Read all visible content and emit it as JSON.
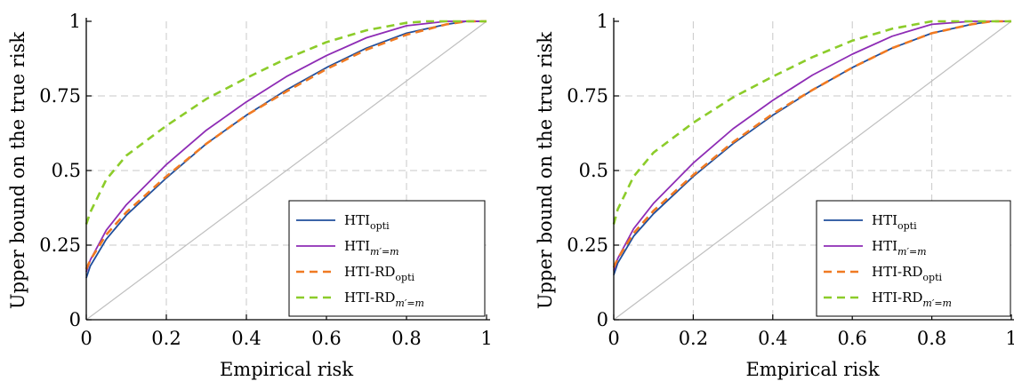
{
  "chart_data": [
    {
      "type": "line",
      "xlabel": "Empirical risk",
      "ylabel": "Upper bound on the true risk",
      "xlim": [
        0,
        1
      ],
      "ylim": [
        0,
        1
      ],
      "grid": true,
      "legend_position": "bottom-right",
      "x_ticks": [
        "0",
        "0.2",
        "0.4",
        "0.6",
        "0.8",
        "1"
      ],
      "y_ticks": [
        "0",
        "0.25",
        "0.5",
        "0.75",
        "1"
      ],
      "reference_line": {
        "x": [
          0,
          1
        ],
        "y": [
          0,
          1
        ],
        "color": "#bfbfbf"
      },
      "series": [
        {
          "name": "HTI",
          "sub": "opti",
          "color": "#1f4e9c",
          "style": "solid",
          "x": [
            0,
            0.01,
            0.05,
            0.1,
            0.2,
            0.3,
            0.4,
            0.5,
            0.6,
            0.7,
            0.8,
            0.9,
            0.95,
            1
          ],
          "y": [
            0.14,
            0.18,
            0.27,
            0.35,
            0.475,
            0.59,
            0.685,
            0.77,
            0.845,
            0.91,
            0.96,
            0.99,
            1.0,
            1.0
          ]
        },
        {
          "name": "HTI",
          "sub": "m′=m",
          "color": "#8e2cb5",
          "style": "solid",
          "x": [
            0,
            0.01,
            0.05,
            0.1,
            0.2,
            0.3,
            0.4,
            0.5,
            0.6,
            0.7,
            0.8,
            0.9,
            0.95,
            1
          ],
          "y": [
            0.16,
            0.2,
            0.3,
            0.385,
            0.52,
            0.635,
            0.73,
            0.815,
            0.885,
            0.945,
            0.985,
            1.0,
            1.0,
            1.0
          ]
        },
        {
          "name": "HTI-RD",
          "sub": "opti",
          "color": "#f07a22",
          "style": "dashed",
          "x": [
            0,
            0.01,
            0.05,
            0.1,
            0.2,
            0.3,
            0.4,
            0.5,
            0.6,
            0.7,
            0.8,
            0.9,
            0.95,
            1
          ],
          "y": [
            0.17,
            0.2,
            0.285,
            0.36,
            0.48,
            0.59,
            0.685,
            0.765,
            0.84,
            0.905,
            0.955,
            0.99,
            1.0,
            1.0
          ]
        },
        {
          "name": "HTI-RD",
          "sub": "m′=m",
          "color": "#8ccc2a",
          "style": "dashed",
          "x": [
            0,
            0.01,
            0.05,
            0.1,
            0.2,
            0.3,
            0.4,
            0.5,
            0.6,
            0.7,
            0.8,
            0.85,
            0.9,
            0.95,
            1
          ],
          "y": [
            0.32,
            0.36,
            0.47,
            0.55,
            0.65,
            0.74,
            0.81,
            0.875,
            0.93,
            0.97,
            0.995,
            1.0,
            1.0,
            1.0,
            1.0
          ]
        }
      ]
    },
    {
      "type": "line",
      "xlabel": "Empirical risk",
      "ylabel": "Upper bound on the true risk",
      "xlim": [
        0,
        1
      ],
      "ylim": [
        0,
        1
      ],
      "grid": true,
      "legend_position": "bottom-right",
      "x_ticks": [
        "0",
        "0.2",
        "0.4",
        "0.6",
        "0.8",
        "1"
      ],
      "y_ticks": [
        "0",
        "0.25",
        "0.5",
        "0.75",
        "1"
      ],
      "reference_line": {
        "x": [
          0,
          1
        ],
        "y": [
          0,
          1
        ],
        "color": "#bfbfbf"
      },
      "series": [
        {
          "name": "HTI",
          "sub": "opti",
          "color": "#1f4e9c",
          "style": "solid",
          "x": [
            0,
            0.01,
            0.05,
            0.1,
            0.2,
            0.3,
            0.4,
            0.5,
            0.6,
            0.7,
            0.8,
            0.9,
            0.95,
            1
          ],
          "y": [
            0.15,
            0.19,
            0.28,
            0.355,
            0.48,
            0.59,
            0.685,
            0.77,
            0.845,
            0.91,
            0.96,
            0.99,
            1.0,
            1.0
          ]
        },
        {
          "name": "HTI",
          "sub": "m′=m",
          "color": "#8e2cb5",
          "style": "solid",
          "x": [
            0,
            0.01,
            0.05,
            0.1,
            0.2,
            0.3,
            0.4,
            0.5,
            0.6,
            0.7,
            0.8,
            0.9,
            0.95,
            1
          ],
          "y": [
            0.165,
            0.205,
            0.305,
            0.39,
            0.525,
            0.64,
            0.735,
            0.82,
            0.89,
            0.95,
            0.99,
            1.0,
            1.0,
            1.0
          ]
        },
        {
          "name": "HTI-RD",
          "sub": "opti",
          "color": "#f07a22",
          "style": "dashed",
          "x": [
            0,
            0.01,
            0.05,
            0.1,
            0.2,
            0.3,
            0.4,
            0.5,
            0.6,
            0.7,
            0.8,
            0.9,
            0.95,
            1
          ],
          "y": [
            0.175,
            0.205,
            0.29,
            0.365,
            0.485,
            0.595,
            0.69,
            0.77,
            0.845,
            0.91,
            0.96,
            0.99,
            1.0,
            1.0
          ]
        },
        {
          "name": "HTI-RD",
          "sub": "m′=m",
          "color": "#8ccc2a",
          "style": "dashed",
          "x": [
            0,
            0.01,
            0.05,
            0.1,
            0.2,
            0.3,
            0.4,
            0.5,
            0.6,
            0.7,
            0.8,
            0.85,
            0.9,
            0.95,
            1
          ],
          "y": [
            0.32,
            0.37,
            0.48,
            0.56,
            0.66,
            0.745,
            0.815,
            0.88,
            0.935,
            0.975,
            1.0,
            1.0,
            1.0,
            1.0,
            1.0
          ]
        }
      ]
    }
  ]
}
